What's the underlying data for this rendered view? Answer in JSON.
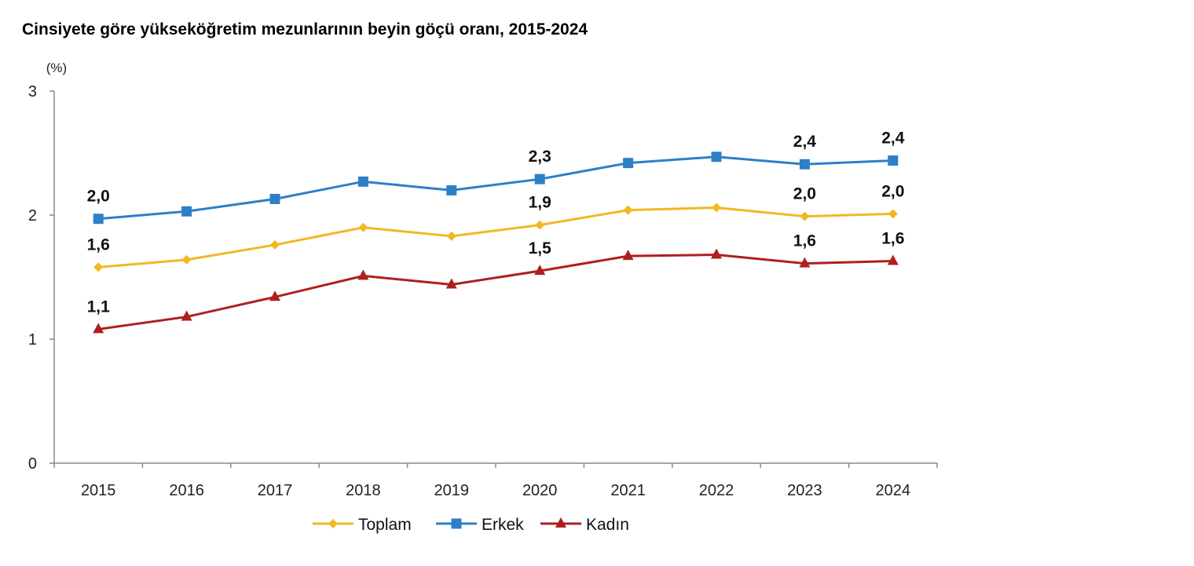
{
  "chart_data": {
    "type": "line",
    "title": "Cinsiyete göre yükseköğretim mezunlarının beyin göçü oranı, 2015-2024",
    "ylabel": "(%)",
    "xlabel": "",
    "ylim": [
      0,
      3
    ],
    "yticks": [
      "0",
      "1",
      "2",
      "3"
    ],
    "categories": [
      "2015",
      "2016",
      "2017",
      "2018",
      "2019",
      "2020",
      "2021",
      "2022",
      "2023",
      "2024"
    ],
    "grid": false,
    "legend_position": "bottom",
    "series": [
      {
        "name": "Toplam",
        "color": "#F2B822",
        "marker": "diamond",
        "values": [
          1.58,
          1.64,
          1.76,
          1.9,
          1.83,
          1.92,
          2.04,
          2.06,
          1.99,
          2.01
        ],
        "labels": {
          "2015": "1,6",
          "2020": "1,9",
          "2023": "2,0",
          "2024": "2,0"
        }
      },
      {
        "name": "Erkek",
        "color": "#2E7FC8",
        "marker": "square",
        "values": [
          1.97,
          2.03,
          2.13,
          2.27,
          2.2,
          2.29,
          2.42,
          2.47,
          2.41,
          2.44
        ],
        "labels": {
          "2015": "2,0",
          "2020": "2,3",
          "2023": "2,4",
          "2024": "2,4"
        }
      },
      {
        "name": "Kadın",
        "color": "#B01E1E",
        "marker": "triangle",
        "values": [
          1.08,
          1.18,
          1.34,
          1.51,
          1.44,
          1.55,
          1.67,
          1.68,
          1.61,
          1.63
        ],
        "labels": {
          "2015": "1,1",
          "2020": "1,5",
          "2023": "1,6",
          "2024": "1,6"
        }
      }
    ]
  }
}
